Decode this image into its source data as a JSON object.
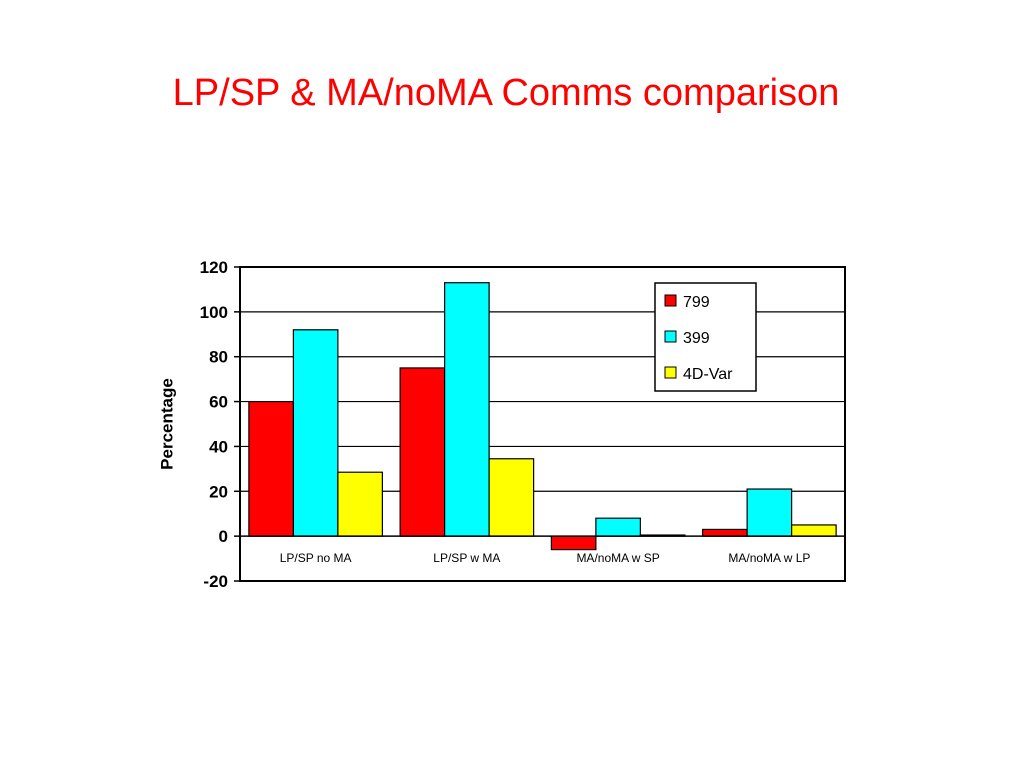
{
  "slide": {
    "title": "LP/SP & MA/noMA Comms comparison"
  },
  "chart_data": {
    "type": "bar",
    "title": "",
    "xlabel": "",
    "ylabel": "Percentage",
    "ylim": [
      -20,
      120
    ],
    "yticks": [
      -20,
      0,
      20,
      40,
      60,
      80,
      100,
      120
    ],
    "grid": true,
    "legend_position": "top-right",
    "categories": [
      "LP/SP no MA",
      "LP/SP w MA",
      "MA/noMA w SP",
      "MA/noMA w LP"
    ],
    "series": [
      {
        "name": "799",
        "color": "#ff0000",
        "values": [
          60,
          75,
          -6,
          3
        ]
      },
      {
        "name": "399",
        "color": "#00ffff",
        "values": [
          92,
          113,
          8,
          21
        ]
      },
      {
        "name": "4D-Var",
        "color": "#ffff00",
        "values": [
          28.5,
          34.5,
          0.5,
          5
        ]
      }
    ]
  }
}
